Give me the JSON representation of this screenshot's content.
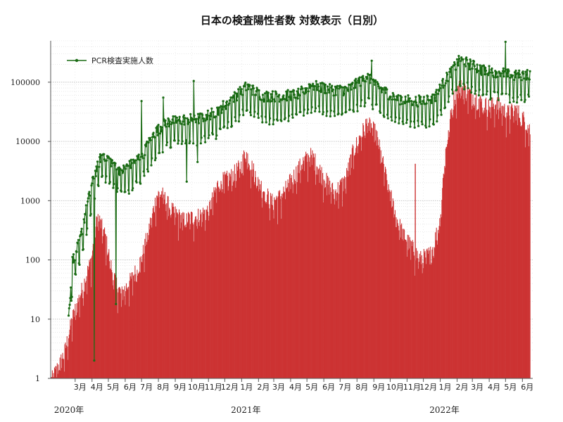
{
  "chart_data": {
    "type": "bar+line",
    "title": "日本の検査陽性者数 対数表示（日別）",
    "yscale": "log",
    "ylim": [
      1,
      500000
    ],
    "y_ticks": [
      {
        "value": 1,
        "label": "1"
      },
      {
        "value": 10,
        "label": "10"
      },
      {
        "value": 100,
        "label": "100"
      },
      {
        "value": 1000,
        "label": "1000"
      },
      {
        "value": 10000,
        "label": "10000"
      },
      {
        "value": 100000,
        "label": "100000"
      }
    ],
    "x_start": "2020-01-16",
    "x_end": "2022-06-20",
    "month_ticks": [
      {
        "date": "2020-03-01",
        "label": "3月"
      },
      {
        "date": "2020-04-01",
        "label": "4月"
      },
      {
        "date": "2020-05-01",
        "label": "5月"
      },
      {
        "date": "2020-06-01",
        "label": "6月"
      },
      {
        "date": "2020-07-01",
        "label": "7月"
      },
      {
        "date": "2020-08-01",
        "label": "8月"
      },
      {
        "date": "2020-09-01",
        "label": "9月"
      },
      {
        "date": "2020-10-01",
        "label": "10月"
      },
      {
        "date": "2020-11-01",
        "label": "11月"
      },
      {
        "date": "2020-12-01",
        "label": "12月"
      },
      {
        "date": "2021-01-01",
        "label": "1月"
      },
      {
        "date": "2021-02-01",
        "label": "2月"
      },
      {
        "date": "2021-03-01",
        "label": "3月"
      },
      {
        "date": "2021-04-01",
        "label": "4月"
      },
      {
        "date": "2021-05-01",
        "label": "5月"
      },
      {
        "date": "2021-06-01",
        "label": "6月"
      },
      {
        "date": "2021-07-01",
        "label": "7月"
      },
      {
        "date": "2021-08-01",
        "label": "8月"
      },
      {
        "date": "2021-09-01",
        "label": "9月"
      },
      {
        "date": "2021-10-01",
        "label": "10月"
      },
      {
        "date": "2021-11-01",
        "label": "11月"
      },
      {
        "date": "2021-12-01",
        "label": "12月"
      },
      {
        "date": "2022-01-01",
        "label": "1月"
      },
      {
        "date": "2022-02-01",
        "label": "2月"
      },
      {
        "date": "2022-03-01",
        "label": "3月"
      },
      {
        "date": "2022-04-01",
        "label": "4月"
      },
      {
        "date": "2022-05-01",
        "label": "5月"
      },
      {
        "date": "2022-06-01",
        "label": "6月"
      }
    ],
    "year_labels": [
      {
        "date": "2020-01-16",
        "label": "2020年"
      },
      {
        "date": "2021-01-01",
        "label": "2021年"
      },
      {
        "date": "2022-01-01",
        "label": "2022年"
      }
    ],
    "grid": true,
    "legend_position": "top-left",
    "series": [
      {
        "name": "",
        "type": "bar",
        "color": "#cc3333",
        "anchors": [
          [
            "2020-01-16",
            1
          ],
          [
            "2020-02-10",
            3
          ],
          [
            "2020-02-25",
            12
          ],
          [
            "2020-03-15",
            40
          ],
          [
            "2020-03-31",
            120
          ],
          [
            "2020-04-11",
            650
          ],
          [
            "2020-04-25",
            300
          ],
          [
            "2020-05-10",
            60
          ],
          [
            "2020-05-25",
            30
          ],
          [
            "2020-06-15",
            60
          ],
          [
            "2020-07-01",
            120
          ],
          [
            "2020-07-15",
            400
          ],
          [
            "2020-07-29",
            1400
          ],
          [
            "2020-08-07",
            1550
          ],
          [
            "2020-08-25",
            800
          ],
          [
            "2020-09-15",
            550
          ],
          [
            "2020-10-15",
            650
          ],
          [
            "2020-11-01",
            800
          ],
          [
            "2020-11-20",
            2400
          ],
          [
            "2020-12-10",
            2800
          ],
          [
            "2020-12-31",
            4500
          ],
          [
            "2021-01-08",
            7800
          ],
          [
            "2021-01-31",
            2500
          ],
          [
            "2021-02-25",
            1100
          ],
          [
            "2021-03-15",
            1400
          ],
          [
            "2021-04-01",
            2500
          ],
          [
            "2021-04-25",
            5500
          ],
          [
            "2021-05-10",
            6800
          ],
          [
            "2021-05-31",
            3000
          ],
          [
            "2021-06-20",
            1600
          ],
          [
            "2021-07-10",
            2500
          ],
          [
            "2021-07-25",
            8000
          ],
          [
            "2021-08-20",
            25000
          ],
          [
            "2021-09-05",
            16000
          ],
          [
            "2021-09-25",
            2500
          ],
          [
            "2021-10-15",
            500
          ],
          [
            "2021-11-01",
            250
          ],
          [
            "2021-11-25",
            120
          ],
          [
            "2021-12-15",
            150
          ],
          [
            "2021-12-31",
            500
          ],
          [
            "2022-01-10",
            7000
          ],
          [
            "2022-01-25",
            60000
          ],
          [
            "2022-02-05",
            100000
          ],
          [
            "2022-02-25",
            75000
          ],
          [
            "2022-03-15",
            55000
          ],
          [
            "2022-03-31",
            45000
          ],
          [
            "2022-04-15",
            50000
          ],
          [
            "2022-05-05",
            35000
          ],
          [
            "2022-05-20",
            40000
          ],
          [
            "2022-06-07",
            25000
          ],
          [
            "2022-06-15",
            18000
          ]
        ],
        "spikes": [
          [
            "2021-11-16",
            4200
          ]
        ]
      },
      {
        "name": "PCR検査実施人数",
        "type": "line",
        "color": "#1a6b14",
        "anchors": [
          [
            "2020-02-18",
            10
          ],
          [
            "2020-02-25",
            90
          ],
          [
            "2020-03-10",
            200
          ],
          [
            "2020-03-20",
            600
          ],
          [
            "2020-04-05",
            2500
          ],
          [
            "2020-04-20",
            6000
          ],
          [
            "2020-05-10",
            4000
          ],
          [
            "2020-05-25",
            3000
          ],
          [
            "2020-06-15",
            4000
          ],
          [
            "2020-07-01",
            5500
          ],
          [
            "2020-07-25",
            13000
          ],
          [
            "2020-08-15",
            20000
          ],
          [
            "2020-09-15",
            22000
          ],
          [
            "2020-10-15",
            23000
          ],
          [
            "2020-11-15",
            30000
          ],
          [
            "2020-12-15",
            50000
          ],
          [
            "2021-01-10",
            80000
          ],
          [
            "2021-02-10",
            55000
          ],
          [
            "2021-03-15",
            55000
          ],
          [
            "2021-04-15",
            60000
          ],
          [
            "2021-05-10",
            85000
          ],
          [
            "2021-06-15",
            70000
          ],
          [
            "2021-07-15",
            70000
          ],
          [
            "2021-08-20",
            120000
          ],
          [
            "2021-09-15",
            70000
          ],
          [
            "2021-10-15",
            50000
          ],
          [
            "2021-11-15",
            45000
          ],
          [
            "2021-12-20",
            50000
          ],
          [
            "2022-01-15",
            120000
          ],
          [
            "2022-02-05",
            220000
          ],
          [
            "2022-02-20",
            200000
          ],
          [
            "2022-03-20",
            150000
          ],
          [
            "2022-04-20",
            140000
          ],
          [
            "2022-05-15",
            120000
          ],
          [
            "2022-06-15",
            130000
          ]
        ],
        "lows": [
          [
            "2020-04-05",
            2
          ],
          [
            "2020-05-15",
            18
          ],
          [
            "2020-09-22",
            2100
          ],
          [
            "2020-10-12",
            4500
          ]
        ],
        "highs": [
          [
            "2020-07-01",
            48000
          ],
          [
            "2020-08-10",
            55000
          ],
          [
            "2020-10-05",
            105000
          ],
          [
            "2021-08-28",
            230000
          ],
          [
            "2022-05-01",
            480000
          ]
        ]
      }
    ]
  }
}
